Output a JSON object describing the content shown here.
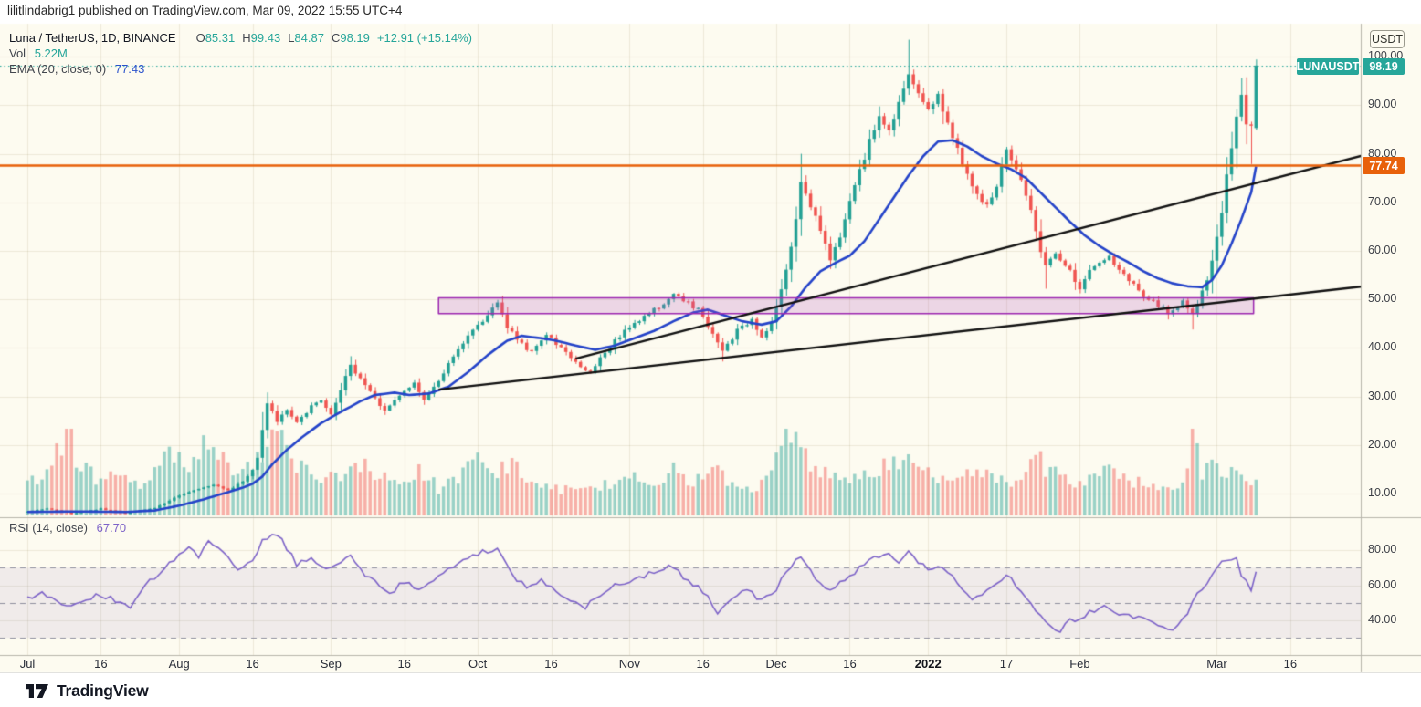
{
  "header": {
    "publish_line": "lilitlindabrig1 published on TradingView.com, Mar 09, 2022 15:55 UTC+4"
  },
  "footer": {
    "brand": "TradingView"
  },
  "legend": {
    "symbol_line": "Luna / TetherUS, 1D, BINANCE",
    "o_label": "O",
    "o_value": "85.31",
    "h_label": "H",
    "h_value": "99.43",
    "l_label": "L",
    "l_value": "84.87",
    "c_label": "C",
    "c_value": "98.19",
    "change": "+12.91 (+15.14%)",
    "vol_label": "Vol",
    "vol_value": "5.22M",
    "ema_label": "EMA (20, close, 0)",
    "ema_value": "77.43",
    "rsi_label": "RSI (14, close)",
    "rsi_value": "67.70"
  },
  "axis": {
    "currency_button": "USDT",
    "price_badge_symbol": "LUNAUSDT",
    "price_badge_value": "98.19",
    "line_badge_value": "77.74"
  },
  "chart_data": {
    "type": "candlestick",
    "symbol": "LUNAUSDT",
    "exchange": "BINANCE",
    "interval": "1D",
    "title": "Luna / TetherUS, 1D, BINANCE",
    "last_ohlc": {
      "open": 85.31,
      "high": 99.43,
      "low": 84.87,
      "close": 98.19,
      "change": "+12.91 (+15.14%)"
    },
    "volume_display": "5.22M",
    "ema_indicator": {
      "period": 20,
      "value": 77.43
    },
    "rsi_indicator": {
      "period": 14,
      "value": 67.7
    },
    "price_axis_ticks": [
      100,
      90,
      80,
      70,
      60,
      50,
      40,
      30,
      20,
      10
    ],
    "rsi_axis_ticks": [
      80,
      60,
      40
    ],
    "rsi_dashed_levels": [
      70,
      50,
      30
    ],
    "rsi_band": [
      30,
      70
    ],
    "time_ticks": [
      {
        "label": "Jul",
        "day": 0
      },
      {
        "label": "16",
        "day": 15
      },
      {
        "label": "Aug",
        "day": 31
      },
      {
        "label": "16",
        "day": 46
      },
      {
        "label": "Sep",
        "day": 62
      },
      {
        "label": "16",
        "day": 77
      },
      {
        "label": "Oct",
        "day": 92
      },
      {
        "label": "16",
        "day": 107
      },
      {
        "label": "Nov",
        "day": 123
      },
      {
        "label": "16",
        "day": 138
      },
      {
        "label": "Dec",
        "day": 153
      },
      {
        "label": "16",
        "day": 168
      },
      {
        "label": "2022",
        "day": 184,
        "bold": true
      },
      {
        "label": "17",
        "day": 200
      },
      {
        "label": "Feb",
        "day": 215
      },
      {
        "label": "Mar",
        "day": 243
      },
      {
        "label": "16",
        "day": 258
      }
    ],
    "day_count": 252,
    "close_path": [
      [
        0,
        6.3
      ],
      [
        4,
        6.9
      ],
      [
        9,
        5.8
      ],
      [
        15,
        6.9
      ],
      [
        20,
        5.9
      ],
      [
        26,
        7.0
      ],
      [
        31,
        9.6
      ],
      [
        35,
        11.0
      ],
      [
        38,
        11.9
      ],
      [
        41,
        10.6
      ],
      [
        44,
        12.5
      ],
      [
        46,
        14.8
      ],
      [
        47,
        17.5
      ],
      [
        49,
        28.5
      ],
      [
        51,
        25.0
      ],
      [
        53,
        27.5
      ],
      [
        55,
        24.5
      ],
      [
        58,
        28.0
      ],
      [
        60,
        29.5
      ],
      [
        62,
        26.5
      ],
      [
        64,
        31.5
      ],
      [
        66,
        36.5
      ],
      [
        68,
        33.5
      ],
      [
        71,
        29.5
      ],
      [
        73,
        27.0
      ],
      [
        76,
        30.5
      ],
      [
        79,
        32.5
      ],
      [
        81,
        29.5
      ],
      [
        84,
        33.5
      ],
      [
        87,
        38.0
      ],
      [
        90,
        43.0
      ],
      [
        92,
        44.5
      ],
      [
        94,
        47.0
      ],
      [
        96,
        49.3
      ],
      [
        98,
        44.5
      ],
      [
        100,
        41.5
      ],
      [
        103,
        39.0
      ],
      [
        106,
        42.5
      ],
      [
        109,
        40.0
      ],
      [
        112,
        37.0
      ],
      [
        115,
        35.0
      ],
      [
        118,
        39.0
      ],
      [
        121,
        42.5
      ],
      [
        123,
        44.5
      ],
      [
        126,
        46.5
      ],
      [
        129,
        48.5
      ],
      [
        132,
        51.5
      ],
      [
        135,
        49.5
      ],
      [
        138,
        47.0
      ],
      [
        140,
        42.5
      ],
      [
        142,
        39.5
      ],
      [
        145,
        43.5
      ],
      [
        148,
        45.5
      ],
      [
        150,
        42.5
      ],
      [
        152,
        45.0
      ],
      [
        153,
        48.5
      ],
      [
        155,
        56.0
      ],
      [
        157,
        66.0
      ],
      [
        158,
        73.5
      ],
      [
        160,
        69.5
      ],
      [
        162,
        64.0
      ],
      [
        164,
        58.0
      ],
      [
        166,
        63.5
      ],
      [
        168,
        69.5
      ],
      [
        170,
        76.5
      ],
      [
        172,
        83.0
      ],
      [
        174,
        88.0
      ],
      [
        176,
        85.0
      ],
      [
        178,
        91.0
      ],
      [
        180,
        97.5
      ],
      [
        182,
        92.5
      ],
      [
        184,
        88.5
      ],
      [
        186,
        92.0
      ],
      [
        188,
        86.0
      ],
      [
        190,
        81.0
      ],
      [
        192,
        76.0
      ],
      [
        194,
        71.5
      ],
      [
        196,
        69.5
      ],
      [
        198,
        74.0
      ],
      [
        200,
        80.0
      ],
      [
        202,
        77.0
      ],
      [
        204,
        72.0
      ],
      [
        206,
        64.0
      ],
      [
        208,
        56.5
      ],
      [
        210,
        60.0
      ],
      [
        212,
        57.0
      ],
      [
        214,
        54.0
      ],
      [
        215,
        52.5
      ],
      [
        217,
        55.5
      ],
      [
        219,
        57.5
      ],
      [
        221,
        58.5
      ],
      [
        224,
        55.0
      ],
      [
        227,
        51.5
      ],
      [
        230,
        49.5
      ],
      [
        233,
        47.5
      ],
      [
        236,
        49.5
      ],
      [
        238,
        46.5
      ],
      [
        240,
        51.5
      ],
      [
        242,
        57.5
      ],
      [
        244,
        68.5
      ],
      [
        245,
        75.5
      ],
      [
        246,
        81.5
      ],
      [
        247,
        88.0
      ],
      [
        248,
        91.5
      ],
      [
        249,
        86.5
      ],
      [
        250,
        85.2
      ],
      [
        251,
        98.19
      ]
    ],
    "candle_overrides": {
      "66": {
        "h": 38.3
      },
      "73": {
        "l": 26.2
      },
      "96": {
        "h": 49.9
      },
      "142": {
        "l": 37.2
      },
      "158": {
        "h": 80.0
      },
      "180": {
        "h": 103.5
      },
      "208": {
        "l": 52.2
      },
      "238": {
        "l": 43.8
      },
      "248": {
        "h": 95.6
      },
      "250": {
        "l": 77.9
      },
      "251": {
        "o": 85.31,
        "h": 99.43,
        "l": 84.87,
        "c": 98.19
      }
    },
    "ema_path": [
      [
        0,
        6.2
      ],
      [
        10,
        6.3
      ],
      [
        20,
        6.2
      ],
      [
        26,
        6.5
      ],
      [
        31,
        7.5
      ],
      [
        36,
        8.8
      ],
      [
        40,
        10.0
      ],
      [
        44,
        11.2
      ],
      [
        46,
        12.0
      ],
      [
        48,
        13.5
      ],
      [
        50,
        16.0
      ],
      [
        53,
        19.0
      ],
      [
        56,
        21.5
      ],
      [
        60,
        24.5
      ],
      [
        64,
        26.8
      ],
      [
        68,
        29.0
      ],
      [
        71,
        30.3
      ],
      [
        75,
        30.8
      ],
      [
        78,
        30.3
      ],
      [
        82,
        30.6
      ],
      [
        86,
        32.0
      ],
      [
        90,
        35.0
      ],
      [
        94,
        38.5
      ],
      [
        98,
        41.5
      ],
      [
        101,
        42.5
      ],
      [
        105,
        42.0
      ],
      [
        108,
        41.5
      ],
      [
        112,
        40.5
      ],
      [
        116,
        39.6
      ],
      [
        120,
        40.5
      ],
      [
        124,
        42.0
      ],
      [
        128,
        43.5
      ],
      [
        132,
        45.5
      ],
      [
        136,
        47.3
      ],
      [
        139,
        47.9
      ],
      [
        143,
        46.5
      ],
      [
        146,
        45.5
      ],
      [
        150,
        44.8
      ],
      [
        153,
        45.5
      ],
      [
        156,
        48.5
      ],
      [
        159,
        52.5
      ],
      [
        162,
        55.8
      ],
      [
        165,
        57.5
      ],
      [
        168,
        59.0
      ],
      [
        171,
        62.0
      ],
      [
        174,
        66.5
      ],
      [
        177,
        71.0
      ],
      [
        180,
        75.5
      ],
      [
        183,
        79.5
      ],
      [
        186,
        82.5
      ],
      [
        189,
        82.8
      ],
      [
        192,
        81.5
      ],
      [
        195,
        79.5
      ],
      [
        198,
        78.0
      ],
      [
        201,
        76.8
      ],
      [
        204,
        75.0
      ],
      [
        207,
        72.0
      ],
      [
        210,
        69.0
      ],
      [
        213,
        66.0
      ],
      [
        216,
        63.2
      ],
      [
        219,
        61.0
      ],
      [
        222,
        59.2
      ],
      [
        225,
        57.6
      ],
      [
        228,
        55.8
      ],
      [
        231,
        54.3
      ],
      [
        234,
        53.3
      ],
      [
        237,
        52.7
      ],
      [
        240,
        52.5
      ],
      [
        242,
        54.0
      ],
      [
        244,
        57.0
      ],
      [
        246,
        61.5
      ],
      [
        248,
        66.5
      ],
      [
        250,
        72.0
      ],
      [
        251,
        77.4
      ]
    ],
    "volume_path": [
      [
        0,
        0.38
      ],
      [
        4,
        0.5
      ],
      [
        8,
        1.0
      ],
      [
        11,
        0.55
      ],
      [
        15,
        0.38
      ],
      [
        19,
        0.5
      ],
      [
        23,
        0.32
      ],
      [
        27,
        0.55
      ],
      [
        29,
        0.78
      ],
      [
        33,
        0.5
      ],
      [
        36,
        0.95
      ],
      [
        39,
        0.62
      ],
      [
        42,
        0.55
      ],
      [
        46,
        0.5
      ],
      [
        49,
        0.8
      ],
      [
        52,
        0.85
      ],
      [
        56,
        0.55
      ],
      [
        60,
        0.45
      ],
      [
        64,
        0.5
      ],
      [
        68,
        0.62
      ],
      [
        72,
        0.42
      ],
      [
        76,
        0.36
      ],
      [
        80,
        0.48
      ],
      [
        84,
        0.32
      ],
      [
        88,
        0.46
      ],
      [
        92,
        0.66
      ],
      [
        96,
        0.52
      ],
      [
        100,
        0.56
      ],
      [
        104,
        0.36
      ],
      [
        108,
        0.3
      ],
      [
        112,
        0.27
      ],
      [
        116,
        0.32
      ],
      [
        120,
        0.36
      ],
      [
        124,
        0.45
      ],
      [
        128,
        0.36
      ],
      [
        132,
        0.5
      ],
      [
        136,
        0.36
      ],
      [
        140,
        0.62
      ],
      [
        144,
        0.36
      ],
      [
        148,
        0.3
      ],
      [
        152,
        0.48
      ],
      [
        155,
        0.95
      ],
      [
        157,
        0.82
      ],
      [
        160,
        0.56
      ],
      [
        164,
        0.46
      ],
      [
        168,
        0.4
      ],
      [
        172,
        0.52
      ],
      [
        176,
        0.56
      ],
      [
        180,
        0.66
      ],
      [
        182,
        0.52
      ],
      [
        186,
        0.42
      ],
      [
        190,
        0.46
      ],
      [
        194,
        0.5
      ],
      [
        198,
        0.36
      ],
      [
        202,
        0.42
      ],
      [
        206,
        0.66
      ],
      [
        210,
        0.46
      ],
      [
        214,
        0.4
      ],
      [
        218,
        0.46
      ],
      [
        222,
        0.5
      ],
      [
        226,
        0.36
      ],
      [
        230,
        0.4
      ],
      [
        234,
        0.3
      ],
      [
        236,
        0.44
      ],
      [
        238,
        0.95
      ],
      [
        240,
        0.5
      ],
      [
        242,
        0.56
      ],
      [
        244,
        0.52
      ],
      [
        246,
        0.48
      ],
      [
        248,
        0.42
      ],
      [
        250,
        0.36
      ],
      [
        251,
        0.45
      ]
    ],
    "rsi_path": [
      [
        0,
        52
      ],
      [
        3,
        57
      ],
      [
        6,
        50
      ],
      [
        9,
        47
      ],
      [
        13,
        53
      ],
      [
        15,
        55
      ],
      [
        18,
        51
      ],
      [
        21,
        48
      ],
      [
        24,
        60
      ],
      [
        28,
        70
      ],
      [
        31,
        78
      ],
      [
        33,
        81
      ],
      [
        35,
        76
      ],
      [
        37,
        84
      ],
      [
        40,
        78
      ],
      [
        43,
        70
      ],
      [
        46,
        74
      ],
      [
        48,
        85
      ],
      [
        50,
        90
      ],
      [
        52,
        86
      ],
      [
        55,
        72
      ],
      [
        58,
        76
      ],
      [
        61,
        68
      ],
      [
        64,
        74
      ],
      [
        66,
        78
      ],
      [
        69,
        66
      ],
      [
        72,
        59
      ],
      [
        74,
        55
      ],
      [
        77,
        62
      ],
      [
        80,
        58
      ],
      [
        83,
        64
      ],
      [
        87,
        70
      ],
      [
        90,
        76
      ],
      [
        93,
        79
      ],
      [
        96,
        81
      ],
      [
        99,
        66
      ],
      [
        102,
        58
      ],
      [
        105,
        63
      ],
      [
        108,
        57
      ],
      [
        111,
        52
      ],
      [
        114,
        47
      ],
      [
        117,
        55
      ],
      [
        120,
        60
      ],
      [
        124,
        64
      ],
      [
        128,
        67
      ],
      [
        132,
        71
      ],
      [
        135,
        62
      ],
      [
        138,
        57
      ],
      [
        141,
        45
      ],
      [
        144,
        53
      ],
      [
        147,
        57
      ],
      [
        150,
        51
      ],
      [
        153,
        58
      ],
      [
        156,
        71
      ],
      [
        158,
        77
      ],
      [
        161,
        64
      ],
      [
        164,
        56
      ],
      [
        167,
        63
      ],
      [
        170,
        70
      ],
      [
        173,
        75
      ],
      [
        176,
        78
      ],
      [
        178,
        73
      ],
      [
        180,
        80
      ],
      [
        182,
        72
      ],
      [
        185,
        69
      ],
      [
        187,
        71
      ],
      [
        190,
        62
      ],
      [
        193,
        53
      ],
      [
        196,
        57
      ],
      [
        198,
        62
      ],
      [
        200,
        66
      ],
      [
        202,
        60
      ],
      [
        205,
        50
      ],
      [
        208,
        38
      ],
      [
        211,
        34
      ],
      [
        213,
        40
      ],
      [
        215,
        41
      ],
      [
        218,
        46
      ],
      [
        220,
        48
      ],
      [
        223,
        44
      ],
      [
        226,
        42
      ],
      [
        229,
        40
      ],
      [
        232,
        37
      ],
      [
        234,
        35
      ],
      [
        237,
        45
      ],
      [
        239,
        55
      ],
      [
        241,
        62
      ],
      [
        243,
        70
      ],
      [
        245,
        75
      ],
      [
        246,
        73
      ],
      [
        247,
        76
      ],
      [
        248,
        66
      ],
      [
        249,
        62
      ],
      [
        250,
        58
      ],
      [
        251,
        67.7
      ]
    ],
    "drawings": {
      "horizontal_line": {
        "price": 77.74,
        "color": "#e8610a"
      },
      "current_price_line": {
        "price": 98.19,
        "color": "#26a69a"
      },
      "rectangle": {
        "day_from": 84,
        "day_to": 250.5,
        "price_top": 50.3,
        "price_bottom": 47.1
      },
      "trendlines": [
        {
          "day1": 84,
          "price1": 31.4,
          "day2": 273,
          "price2": 52.7
        },
        {
          "day1": 112,
          "price1": 37.8,
          "day2": 273,
          "price2": 79.7
        }
      ]
    },
    "colors": {
      "background": "#fdfbf0",
      "up": "#22a094",
      "down": "#f05450",
      "volume_up": "rgba(34,160,148,0.45)",
      "volume_down": "rgba(240,84,80,0.45)",
      "ema": "#2443c9",
      "rsi": "#7d63c8",
      "rsi_band": "rgba(123,99,182,0.10)",
      "rsi_dash": "#8f8f9f",
      "grid": "rgba(155,145,95,0.16)",
      "separator": "#b8b6ab",
      "trendline": "#111111",
      "rect_fill": "rgba(177,80,190,0.22)",
      "rect_border": "#9c27b0",
      "orange": "#e8610a",
      "teal": "#26a69a"
    }
  }
}
